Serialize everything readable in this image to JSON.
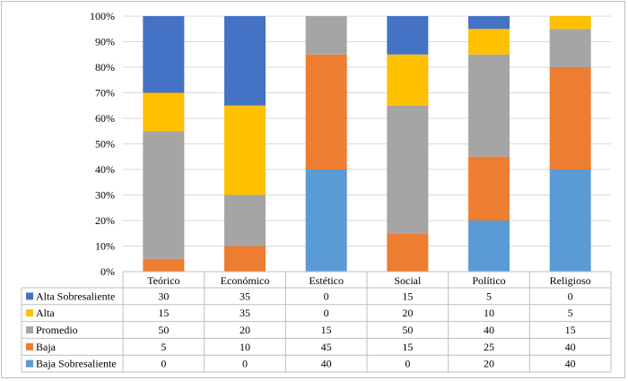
{
  "chart_data": {
    "type": "bar",
    "stacked": true,
    "percent_stacked": true,
    "categories": [
      "Teórico",
      "Económico",
      "Estético",
      "Social",
      "Político",
      "Religioso"
    ],
    "y_tick_labels": [
      "0%",
      "10%",
      "20%",
      "30%",
      "40%",
      "50%",
      "60%",
      "70%",
      "80%",
      "90%",
      "100%"
    ],
    "ylim": [
      0,
      100
    ],
    "grid": true,
    "legend_placement": "data-table-left",
    "series": [
      {
        "name": "Baja Sobresaliente",
        "color": "#5b9bd5",
        "values": [
          0,
          0,
          40,
          0,
          20,
          40
        ]
      },
      {
        "name": "Baja",
        "color": "#ed7d31",
        "values": [
          5,
          10,
          45,
          15,
          25,
          40
        ]
      },
      {
        "name": "Promedio",
        "color": "#a5a5a5",
        "values": [
          50,
          20,
          15,
          50,
          40,
          15
        ]
      },
      {
        "name": "Alta",
        "color": "#ffc000",
        "values": [
          15,
          35,
          0,
          20,
          10,
          5
        ]
      },
      {
        "name": "Alta Sobresaliente",
        "color": "#4472c4",
        "values": [
          30,
          35,
          0,
          15,
          5,
          0
        ]
      }
    ],
    "table_row_order": [
      "Alta Sobresaliente",
      "Alta",
      "Promedio",
      "Baja",
      "Baja Sobresaliente"
    ]
  }
}
